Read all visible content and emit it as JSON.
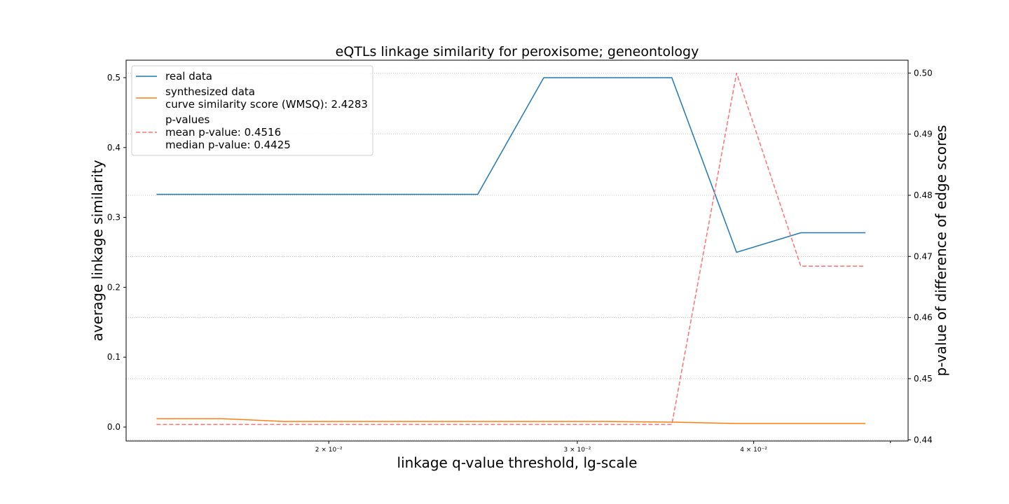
{
  "chart_data": {
    "type": "line",
    "title": "eQTLs linkage similarity for peroxisome; geneontology",
    "xlabel": "linkage q-value threshold, lg-scale",
    "ylabel": "average linkage similarity",
    "y2label": "p-value of difference of edge scores",
    "xscale": "log",
    "xlim": [
      0.01437,
      0.05146
    ],
    "ylim": [
      -0.02,
      0.525
    ],
    "y2lim": [
      0.4398,
      0.5021
    ],
    "x_ticks": [
      {
        "value": 0.02,
        "label": "2 × 10⁻²"
      },
      {
        "value": 0.03,
        "label": "3 × 10⁻²"
      },
      {
        "value": 0.04,
        "label": "4 × 10⁻²"
      }
    ],
    "y_ticks": [
      0.0,
      0.1,
      0.2,
      0.3,
      0.4,
      0.5
    ],
    "y_tick_labels": [
      "0.0",
      "0.1",
      "0.2",
      "0.3",
      "0.4",
      "0.5"
    ],
    "y2_ticks": [
      0.44,
      0.45,
      0.46,
      0.47,
      0.48,
      0.49,
      0.5
    ],
    "y2_tick_labels": [
      "0.44",
      "0.45",
      "0.46",
      "0.47",
      "0.48",
      "0.49",
      "0.50"
    ],
    "grid": "horizontal, dotted, right axis",
    "legend_position": "top-left",
    "x": [
      0.0151,
      0.0168,
      0.0186,
      0.0207,
      0.023,
      0.0255,
      0.0284,
      0.0315,
      0.035,
      0.0389,
      0.0432,
      0.048
    ],
    "series": [
      {
        "name": "real data",
        "axis": "left",
        "color": "#1f77b4",
        "style": "solid",
        "values": [
          0.333,
          0.333,
          0.333,
          0.333,
          0.333,
          0.333,
          0.5,
          0.5,
          0.5,
          0.25,
          0.278,
          0.278
        ]
      },
      {
        "name": "synthesized data",
        "axis": "left",
        "color": "#ff7f0e",
        "style": "solid",
        "values": [
          0.012,
          0.012,
          0.008,
          0.008,
          0.008,
          0.008,
          0.008,
          0.008,
          0.007,
          0.005,
          0.005,
          0.005
        ]
      },
      {
        "name": "p-values",
        "axis": "right",
        "color": "#ff7070",
        "style": "dashed",
        "values": [
          0.4425,
          0.4425,
          0.4425,
          0.4425,
          0.4425,
          0.4425,
          0.4425,
          0.4425,
          0.4425,
          0.5,
          0.4684,
          0.4684
        ]
      }
    ],
    "legend": [
      {
        "series": "real data",
        "lines": [
          "real data"
        ]
      },
      {
        "series": "synthesized data",
        "lines": [
          "synthesized data",
          "curve similarity score (WMSQ): 2.4283"
        ]
      },
      {
        "series": "p-values",
        "lines": [
          "p-values",
          "mean p-value: 0.4516",
          "median p-value: 0.4425"
        ]
      }
    ]
  }
}
